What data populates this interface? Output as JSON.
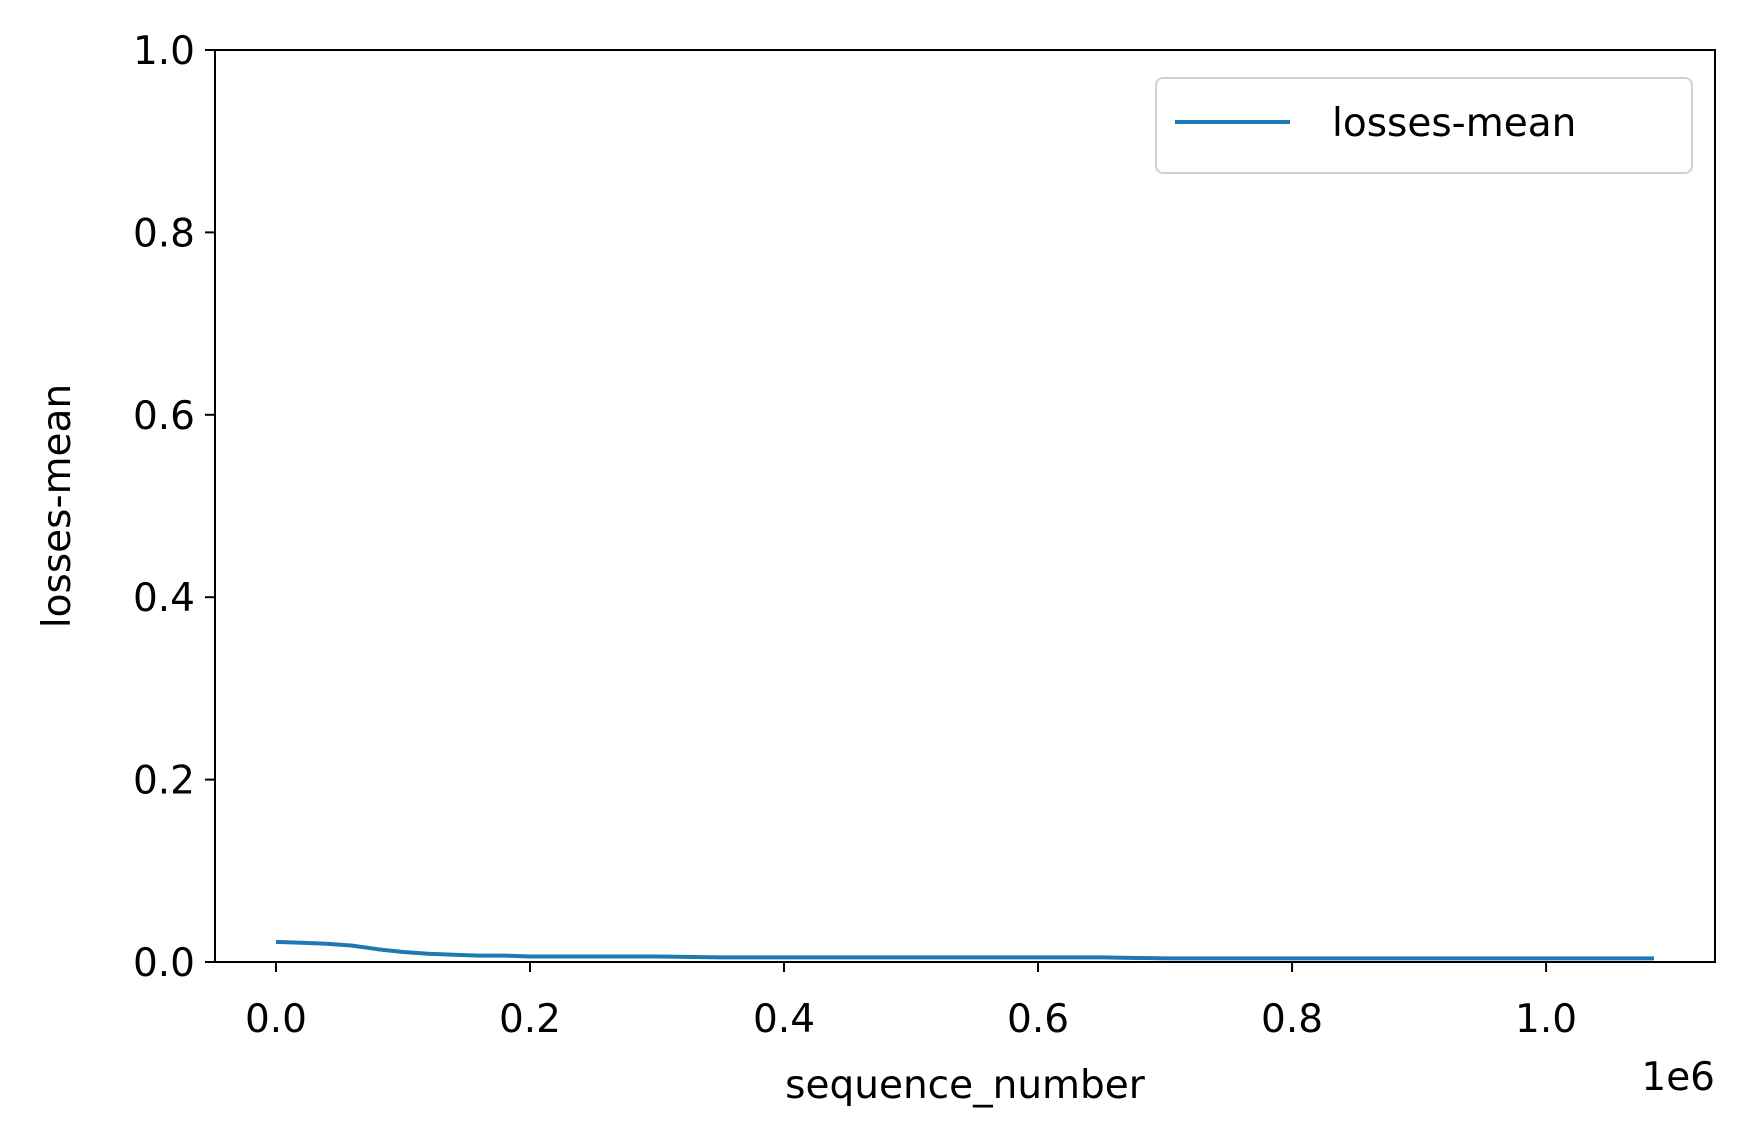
{
  "chart_data": {
    "type": "line",
    "xlabel": "sequence_number",
    "ylabel": "losses-mean",
    "x_offset_text": "1e6",
    "xlim": [
      -0.048,
      1.133
    ],
    "ylim": [
      0.0,
      1.0
    ],
    "x_ticks": [
      {
        "value": 0.0,
        "label": "0.0"
      },
      {
        "value": 0.2,
        "label": "0.2"
      },
      {
        "value": 0.4,
        "label": "0.4"
      },
      {
        "value": 0.6,
        "label": "0.6"
      },
      {
        "value": 0.8,
        "label": "0.8"
      },
      {
        "value": 1.0,
        "label": "1.0"
      }
    ],
    "y_ticks": [
      {
        "value": 0.0,
        "label": "0.0"
      },
      {
        "value": 0.2,
        "label": "0.2"
      },
      {
        "value": 0.4,
        "label": "0.4"
      },
      {
        "value": 0.6,
        "label": "0.6"
      },
      {
        "value": 0.8,
        "label": "0.8"
      },
      {
        "value": 1.0,
        "label": "1.0"
      }
    ],
    "grid": false,
    "legend_position": "top-right",
    "series": [
      {
        "name": "losses-mean",
        "color": "#1f77b4",
        "x": [
          0.0,
          0.02,
          0.04,
          0.06,
          0.08,
          0.1,
          0.12,
          0.14,
          0.16,
          0.18,
          0.2,
          0.25,
          0.3,
          0.35,
          0.4,
          0.45,
          0.5,
          0.55,
          0.6,
          0.65,
          0.7,
          0.75,
          0.8,
          0.85,
          0.9,
          0.95,
          1.0,
          1.05,
          1.085
        ],
        "y": [
          0.022,
          0.021,
          0.02,
          0.018,
          0.014,
          0.011,
          0.009,
          0.008,
          0.007,
          0.007,
          0.006,
          0.006,
          0.006,
          0.005,
          0.005,
          0.005,
          0.005,
          0.005,
          0.005,
          0.005,
          0.004,
          0.004,
          0.004,
          0.004,
          0.004,
          0.004,
          0.004,
          0.004,
          0.004
        ]
      }
    ]
  }
}
